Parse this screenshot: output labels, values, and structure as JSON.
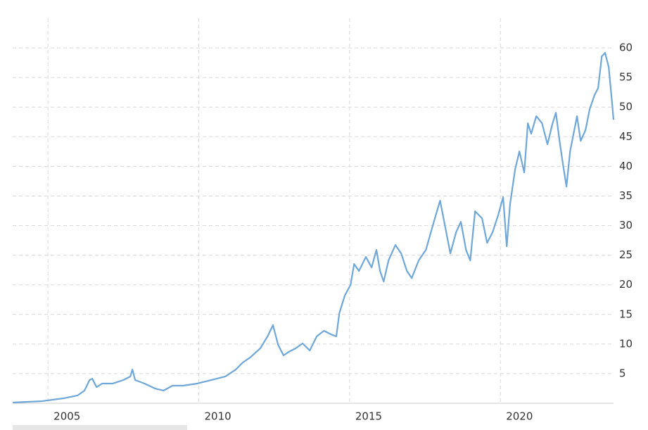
{
  "chart_data": {
    "type": "line",
    "x": [
      2003.83,
      2004.81,
      2005.51,
      2005.98,
      2006.21,
      2006.38,
      2006.47,
      2006.61,
      2006.8,
      2007.15,
      2007.5,
      2007.73,
      2007.8,
      2007.89,
      2008.2,
      2008.55,
      2008.83,
      2009.13,
      2009.48,
      2009.95,
      2010.41,
      2010.88,
      2011.23,
      2011.46,
      2011.7,
      2012.04,
      2012.28,
      2012.46,
      2012.63,
      2012.81,
      2012.98,
      2013.21,
      2013.44,
      2013.68,
      2013.91,
      2014.15,
      2014.38,
      2014.56,
      2014.66,
      2014.84,
      2015.03,
      2015.15,
      2015.31,
      2015.54,
      2015.73,
      2015.89,
      2016.01,
      2016.13,
      2016.29,
      2016.52,
      2016.71,
      2016.9,
      2017.06,
      2017.29,
      2017.53,
      2017.76,
      2018.0,
      2018.16,
      2018.34,
      2018.53,
      2018.69,
      2018.86,
      2019.0,
      2019.16,
      2019.39,
      2019.56,
      2019.74,
      2019.93,
      2020.09,
      2020.21,
      2020.32,
      2020.49,
      2020.63,
      2020.79,
      2020.91,
      2021.02,
      2021.19,
      2021.38,
      2021.56,
      2021.73,
      2021.84,
      2021.96,
      2022.08,
      2022.19,
      2022.31,
      2022.54,
      2022.66,
      2022.82,
      2022.96,
      2023.12,
      2023.24,
      2023.36,
      2023.47,
      2023.59,
      2023.71,
      2023.75
    ],
    "series": [
      {
        "color": "#6fa7d9",
        "values": [
          0.12,
          0.36,
          0.83,
          1.31,
          2.14,
          3.92,
          4.16,
          2.73,
          3.33,
          3.33,
          3.92,
          4.52,
          5.7,
          3.92,
          3.33,
          2.49,
          2.14,
          2.97,
          2.97,
          3.33,
          3.92,
          4.52,
          5.7,
          6.89,
          7.72,
          9.27,
          11.29,
          13.19,
          9.86,
          8.08,
          8.67,
          9.27,
          10.1,
          8.91,
          11.29,
          12.24,
          11.64,
          11.29,
          15.21,
          18.18,
          19.96,
          23.52,
          22.33,
          24.71,
          22.93,
          25.9,
          22.33,
          20.55,
          24.11,
          26.73,
          25.3,
          22.33,
          21.14,
          24.11,
          25.9,
          30.05,
          34.21,
          30.05,
          25.3,
          28.87,
          30.65,
          25.9,
          24.11,
          32.43,
          31.24,
          27.09,
          28.87,
          31.84,
          34.81,
          26.49,
          33.62,
          39.56,
          42.53,
          38.96,
          47.28,
          45.5,
          48.47,
          47.28,
          43.72,
          47.28,
          49.06,
          44.31,
          40.15,
          36.59,
          42.53,
          48.47,
          44.31,
          46.09,
          49.66,
          52.03,
          53.22,
          58.57,
          59.16,
          56.78,
          50.25,
          47.87
        ]
      }
    ],
    "xlim": [
      2003.83,
      2023.75
    ],
    "xticks": [
      2005,
      2010,
      2015,
      2020
    ],
    "ylim": [
      0,
      65
    ],
    "yticks": [
      5,
      10,
      15,
      20,
      25,
      30,
      35,
      40,
      45,
      50,
      55,
      60
    ],
    "grid": true
  }
}
